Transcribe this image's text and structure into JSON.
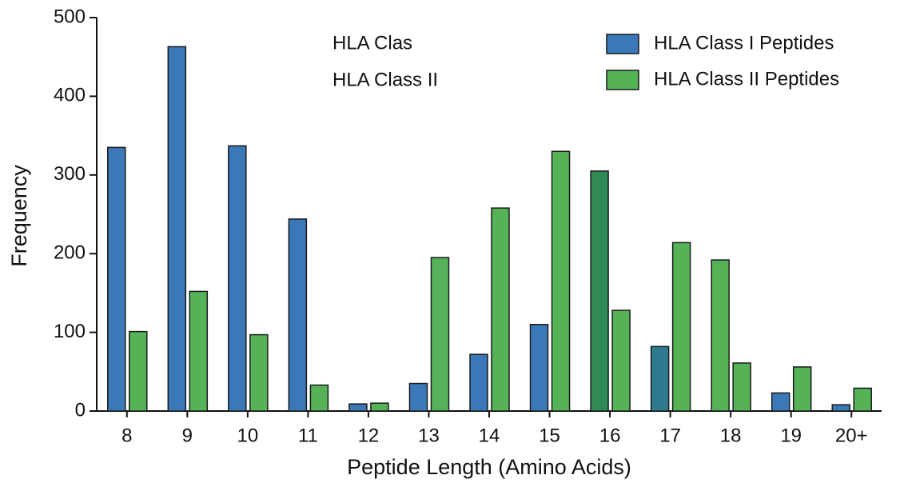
{
  "chart_data": {
    "type": "bar",
    "xlabel": "Peptide Length (Amino Acids)",
    "ylabel": "Frequency",
    "annotations": [
      "HLA Clas",
      "HLA Class II"
    ],
    "categories": [
      "8",
      "9",
      "10",
      "11",
      "12",
      "13",
      "14",
      "15",
      "16",
      "17",
      "18",
      "19",
      "20+"
    ],
    "series": [
      {
        "name": "HLA Class I Peptides",
        "color": "#3a78b8",
        "colors": [
          "#3a78b8",
          "#3a78b8",
          "#3a78b8",
          "#3a78b8",
          "#3a78b8",
          "#3a78b8",
          "#3a78b8",
          "#3a78b8",
          "#2f8a55",
          "#2e7a8e",
          "#55b257",
          "#3a78b8",
          "#3a78b8"
        ],
        "values": [
          335,
          463,
          337,
          244,
          9,
          35,
          72,
          110,
          305,
          82,
          192,
          23,
          8
        ]
      },
      {
        "name": "HLA Class II Peptides",
        "color": "#55b257",
        "values": [
          101,
          152,
          97,
          33,
          10,
          195,
          258,
          330,
          128,
          214,
          61,
          56,
          29
        ]
      }
    ],
    "ylim": [
      0,
      500
    ],
    "yticks": [
      0,
      100,
      200,
      300,
      400,
      500
    ],
    "grid": false,
    "legend": "top-right"
  }
}
